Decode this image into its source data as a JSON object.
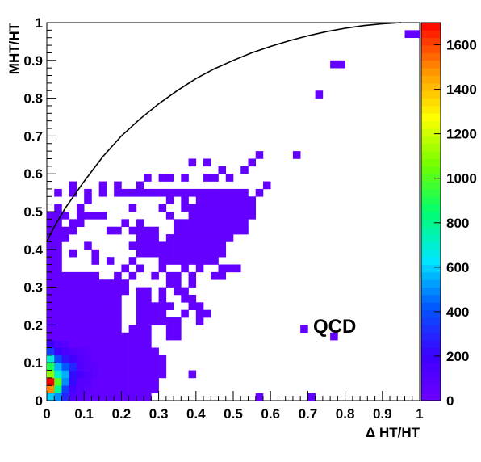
{
  "chart_data": {
    "type": "heatmap",
    "title": "",
    "xlabel": "Δ HT/HT",
    "ylabel": "MHT/HT",
    "xlim": [
      0,
      1
    ],
    "ylim": [
      0,
      1
    ],
    "zlim": [
      0,
      1700
    ],
    "bins": {
      "nx": 50,
      "ny": 50
    },
    "xticks": [
      "0",
      "0.1",
      "0.2",
      "0.3",
      "0.4",
      "0.5",
      "0.6",
      "0.7",
      "0.8",
      "0.9",
      "1"
    ],
    "yticks": [
      "0",
      "0.1",
      "0.2",
      "0.3",
      "0.4",
      "0.5",
      "0.6",
      "0.7",
      "0.8",
      "0.9",
      "1"
    ],
    "zticks": [
      "0",
      "200",
      "400",
      "600",
      "800",
      "1000",
      "1200",
      "1400",
      "1600"
    ],
    "annotation": "QCD",
    "curve": {
      "description": "kinematic boundary",
      "points": [
        [
          0.0,
          0.42
        ],
        [
          0.02,
          0.46
        ],
        [
          0.05,
          0.51
        ],
        [
          0.1,
          0.58
        ],
        [
          0.15,
          0.645
        ],
        [
          0.2,
          0.7
        ],
        [
          0.25,
          0.745
        ],
        [
          0.3,
          0.785
        ],
        [
          0.35,
          0.82
        ],
        [
          0.4,
          0.852
        ],
        [
          0.45,
          0.878
        ],
        [
          0.5,
          0.9
        ],
        [
          0.55,
          0.92
        ],
        [
          0.6,
          0.937
        ],
        [
          0.65,
          0.952
        ],
        [
          0.7,
          0.965
        ],
        [
          0.75,
          0.976
        ],
        [
          0.8,
          0.985
        ],
        [
          0.85,
          0.992
        ],
        [
          0.9,
          0.997
        ],
        [
          0.95,
          1.0
        ]
      ]
    },
    "cells": [
      [
        0.0,
        0.0,
        600
      ],
      [
        0.02,
        0.0,
        500
      ],
      [
        0.04,
        0.0,
        300
      ],
      [
        0.06,
        0.0,
        120
      ],
      [
        0.0,
        0.02,
        1500
      ],
      [
        0.02,
        0.02,
        800
      ],
      [
        0.04,
        0.02,
        350
      ],
      [
        0.06,
        0.02,
        150
      ],
      [
        0.0,
        0.04,
        1700
      ],
      [
        0.02,
        0.04,
        1000
      ],
      [
        0.04,
        0.04,
        500
      ],
      [
        0.06,
        0.04,
        220
      ],
      [
        0.0,
        0.06,
        1100
      ],
      [
        0.02,
        0.06,
        700
      ],
      [
        0.04,
        0.06,
        550
      ],
      [
        0.06,
        0.06,
        230
      ],
      [
        0.0,
        0.08,
        900
      ],
      [
        0.02,
        0.08,
        550
      ],
      [
        0.04,
        0.08,
        420
      ],
      [
        0.06,
        0.08,
        300
      ],
      [
        0.0,
        0.1,
        700
      ],
      [
        0.02,
        0.1,
        380
      ],
      [
        0.04,
        0.1,
        250
      ],
      [
        0.06,
        0.1,
        180
      ],
      [
        0.0,
        0.12,
        350
      ],
      [
        0.02,
        0.12,
        200
      ],
      [
        0.04,
        0.12,
        150
      ],
      [
        0.06,
        0.12,
        100
      ],
      [
        0.08,
        0.0,
        80
      ],
      [
        0.08,
        0.02,
        90
      ],
      [
        0.08,
        0.04,
        100
      ],
      [
        0.08,
        0.06,
        160
      ],
      [
        0.08,
        0.08,
        120
      ],
      [
        0.08,
        0.1,
        100
      ],
      [
        0.08,
        0.12,
        90
      ],
      [
        0.1,
        0.02,
        70
      ],
      [
        0.1,
        0.04,
        90
      ],
      [
        0.1,
        0.06,
        110
      ],
      [
        0.1,
        0.08,
        80
      ],
      [
        0.1,
        0.1,
        80
      ],
      [
        0.1,
        0.12,
        70
      ],
      [
        0.12,
        0.06,
        70
      ],
      [
        0.12,
        0.08,
        60
      ],
      [
        0.0,
        0.14,
        200
      ],
      [
        0.02,
        0.14,
        120
      ],
      [
        0.04,
        0.14,
        90
      ]
    ]
  }
}
